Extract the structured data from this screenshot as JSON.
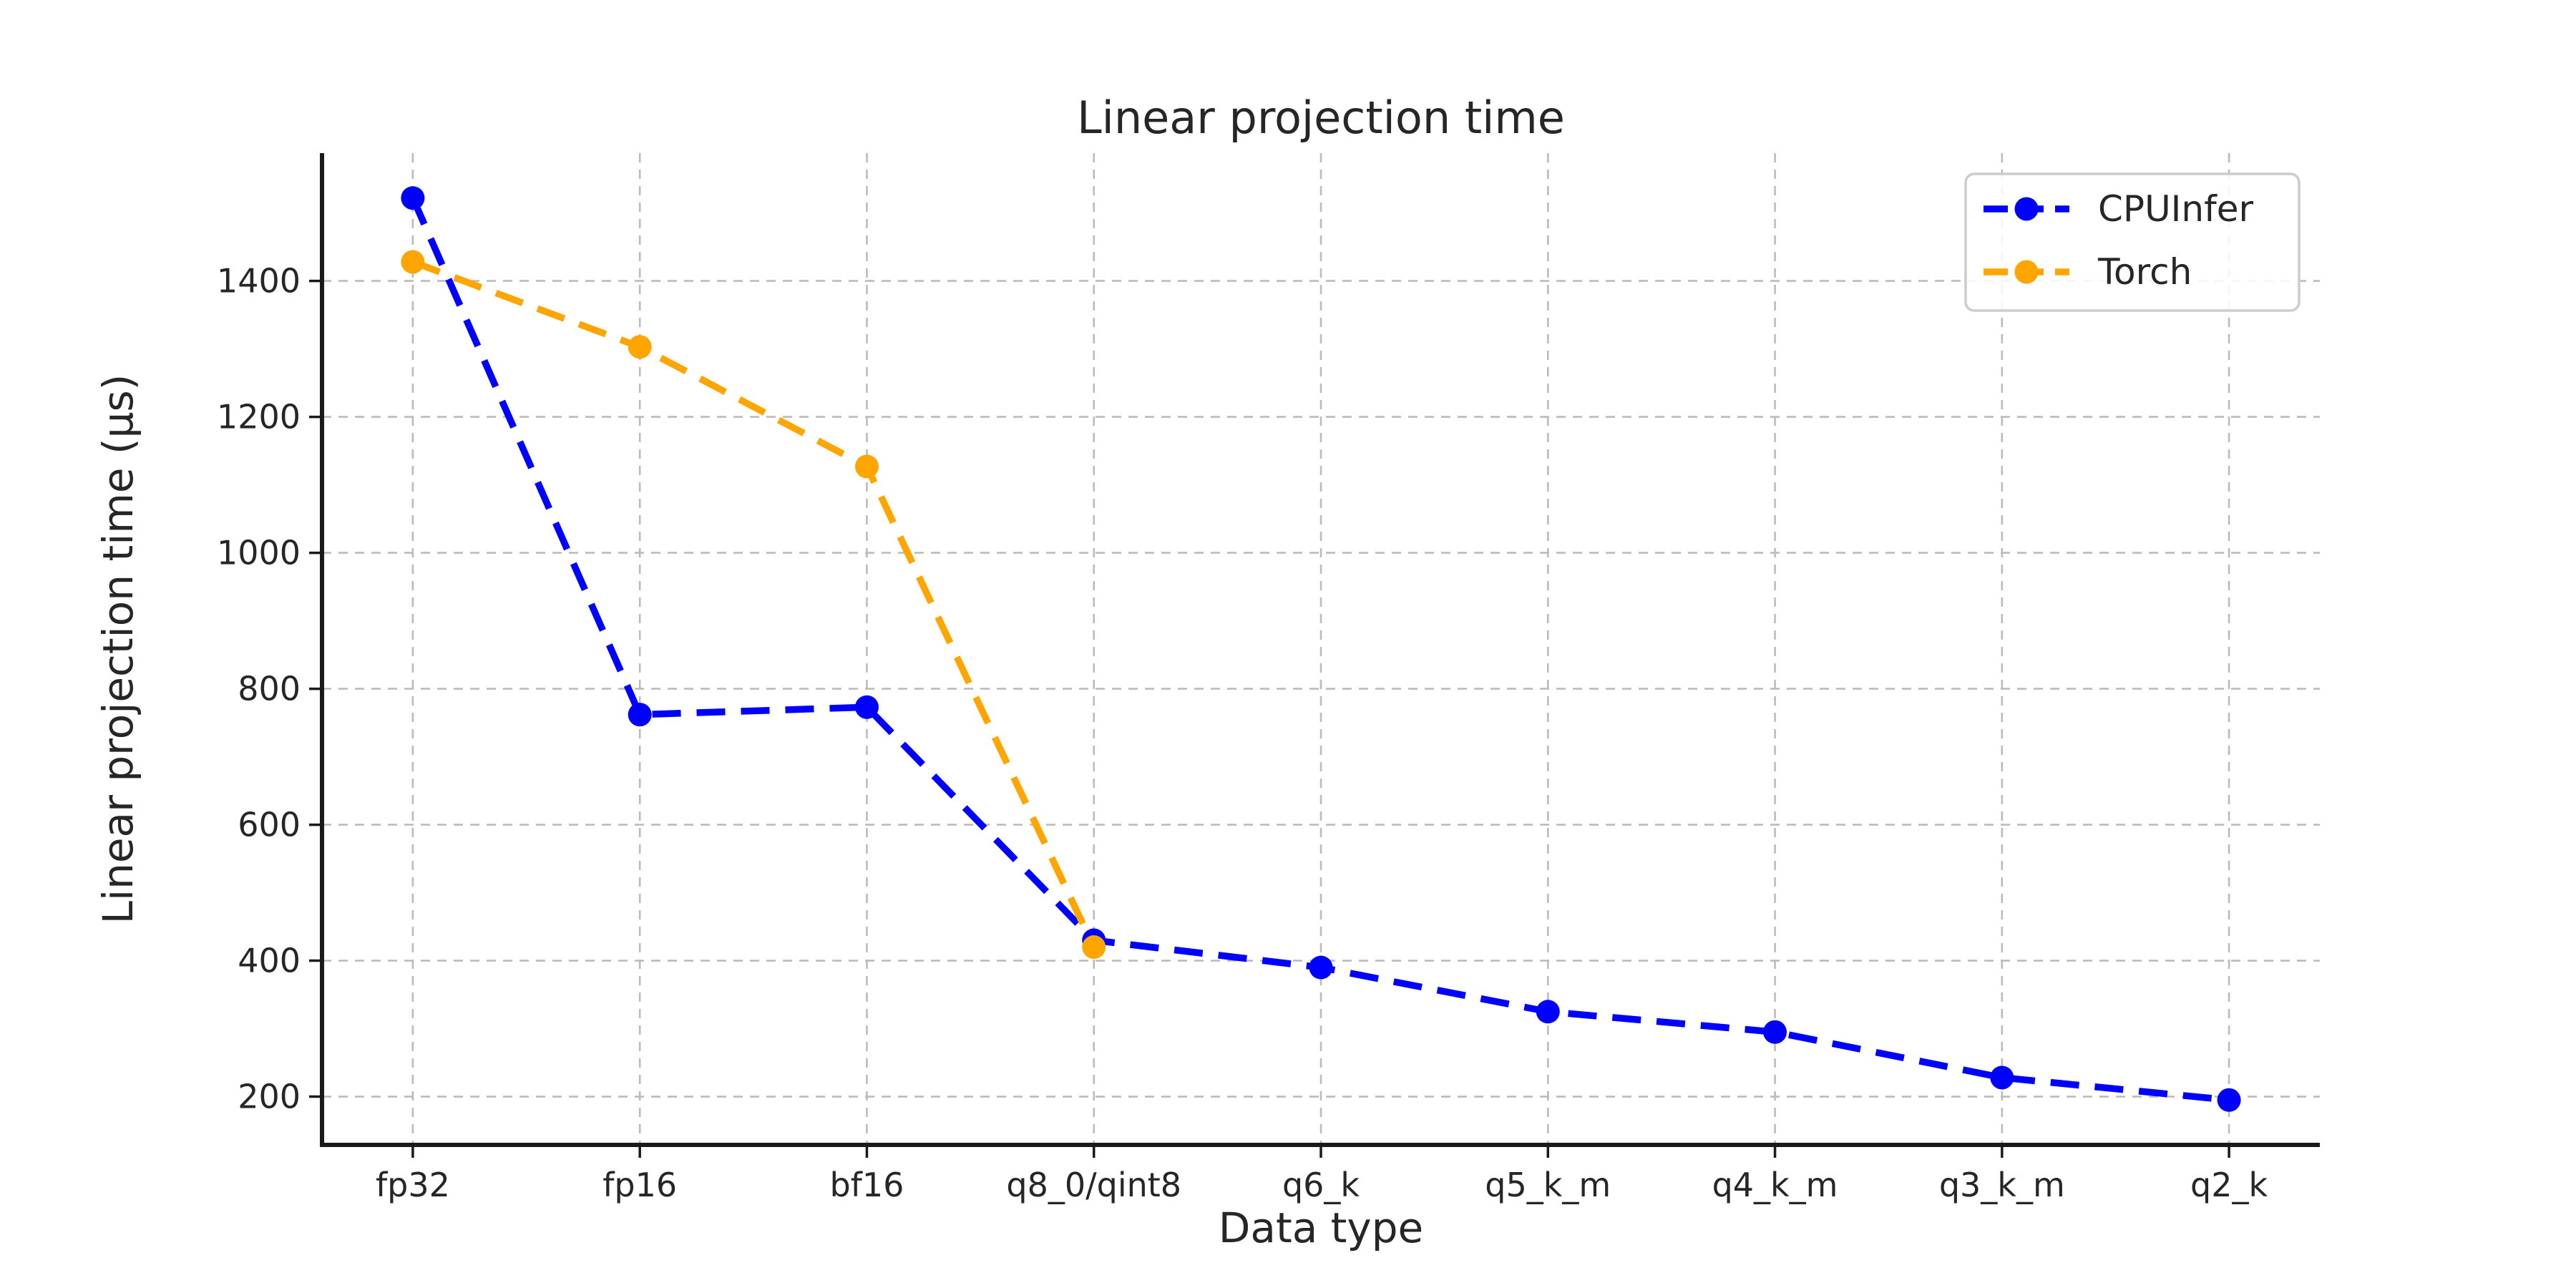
{
  "chart_data": {
    "type": "line",
    "title": "Linear projection time",
    "xlabel": "Data type",
    "ylabel": "Linear projection time (μs)",
    "categories": [
      "fp32",
      "fp16",
      "bf16",
      "q8_0/qint8",
      "q6_k",
      "q5_k_m",
      "q4_k_m",
      "q3_k_m",
      "q2_k"
    ],
    "series": [
      {
        "name": "CPUInfer",
        "color": "#0000ff",
        "values": [
          1522,
          762,
          773,
          430,
          390,
          325,
          295,
          228,
          195
        ]
      },
      {
        "name": "Torch",
        "color": "#ffa500",
        "values": [
          1428,
          1303,
          1127,
          420
        ]
      }
    ],
    "ylim": [
      129,
      1588
    ],
    "y_ticks": [
      200,
      400,
      600,
      800,
      1000,
      1200,
      1400
    ],
    "grid": true,
    "grid_style": "dashed",
    "line_style": "dashed",
    "marker": "circle",
    "legend_position": "upper right",
    "background_color": "#ffffff",
    "grid_color": "#bbbbbb",
    "spine_color": "#1a1a1a",
    "text_color": "#262626",
    "legend_border_color": "#cccccc"
  }
}
